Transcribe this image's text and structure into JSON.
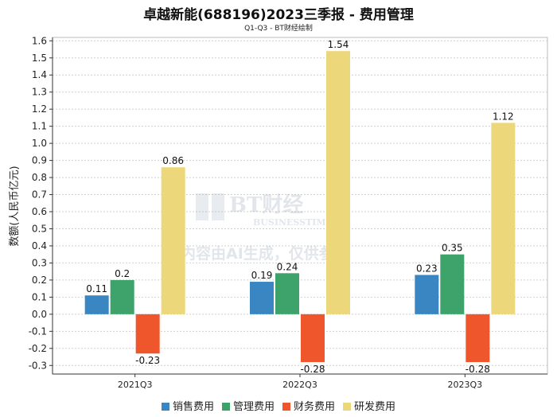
{
  "chart_data": {
    "type": "bar",
    "title": "卓越新能(688196)2023三季报 - 费用管理",
    "subtitle": "Q1-Q3 - BT财经绘制",
    "ylabel": "数额(人民币亿元)",
    "xlabel": "",
    "categories": [
      "2021Q3",
      "2022Q3",
      "2023Q3"
    ],
    "ylim": [
      -0.35,
      1.62
    ],
    "yticks": [
      -0.3,
      -0.2,
      -0.1,
      0.0,
      0.1,
      0.2,
      0.3,
      0.4,
      0.5,
      0.6,
      0.7,
      0.8,
      0.9,
      1.0,
      1.1,
      1.2,
      1.3,
      1.4,
      1.5,
      1.6
    ],
    "grid": true,
    "legend_position": "bottom",
    "series": [
      {
        "name": "销售费用",
        "color": "#3a86c3",
        "values": [
          0.11,
          0.19,
          0.23
        ],
        "labels": [
          "0.11",
          "0.19",
          "0.23"
        ]
      },
      {
        "name": "管理费用",
        "color": "#3ea36a",
        "values": [
          0.2,
          0.24,
          0.35
        ],
        "labels": [
          "0.2",
          "0.24",
          "0.35"
        ]
      },
      {
        "name": "财务费用",
        "color": "#f0562b",
        "values": [
          -0.23,
          -0.28,
          -0.28
        ],
        "labels": [
          "-0.23",
          "-0.28",
          "-0.28"
        ]
      },
      {
        "name": "研发费用",
        "color": "#ecd87a",
        "values": [
          0.86,
          1.54,
          1.12
        ],
        "labels": [
          "0.86",
          "1.54",
          "1.12"
        ]
      }
    ]
  },
  "watermark": {
    "logo_text": "BT财经",
    "logo_sub": "BUSINESSTIMES",
    "notice": "内容由AI生成，仅供参考"
  }
}
